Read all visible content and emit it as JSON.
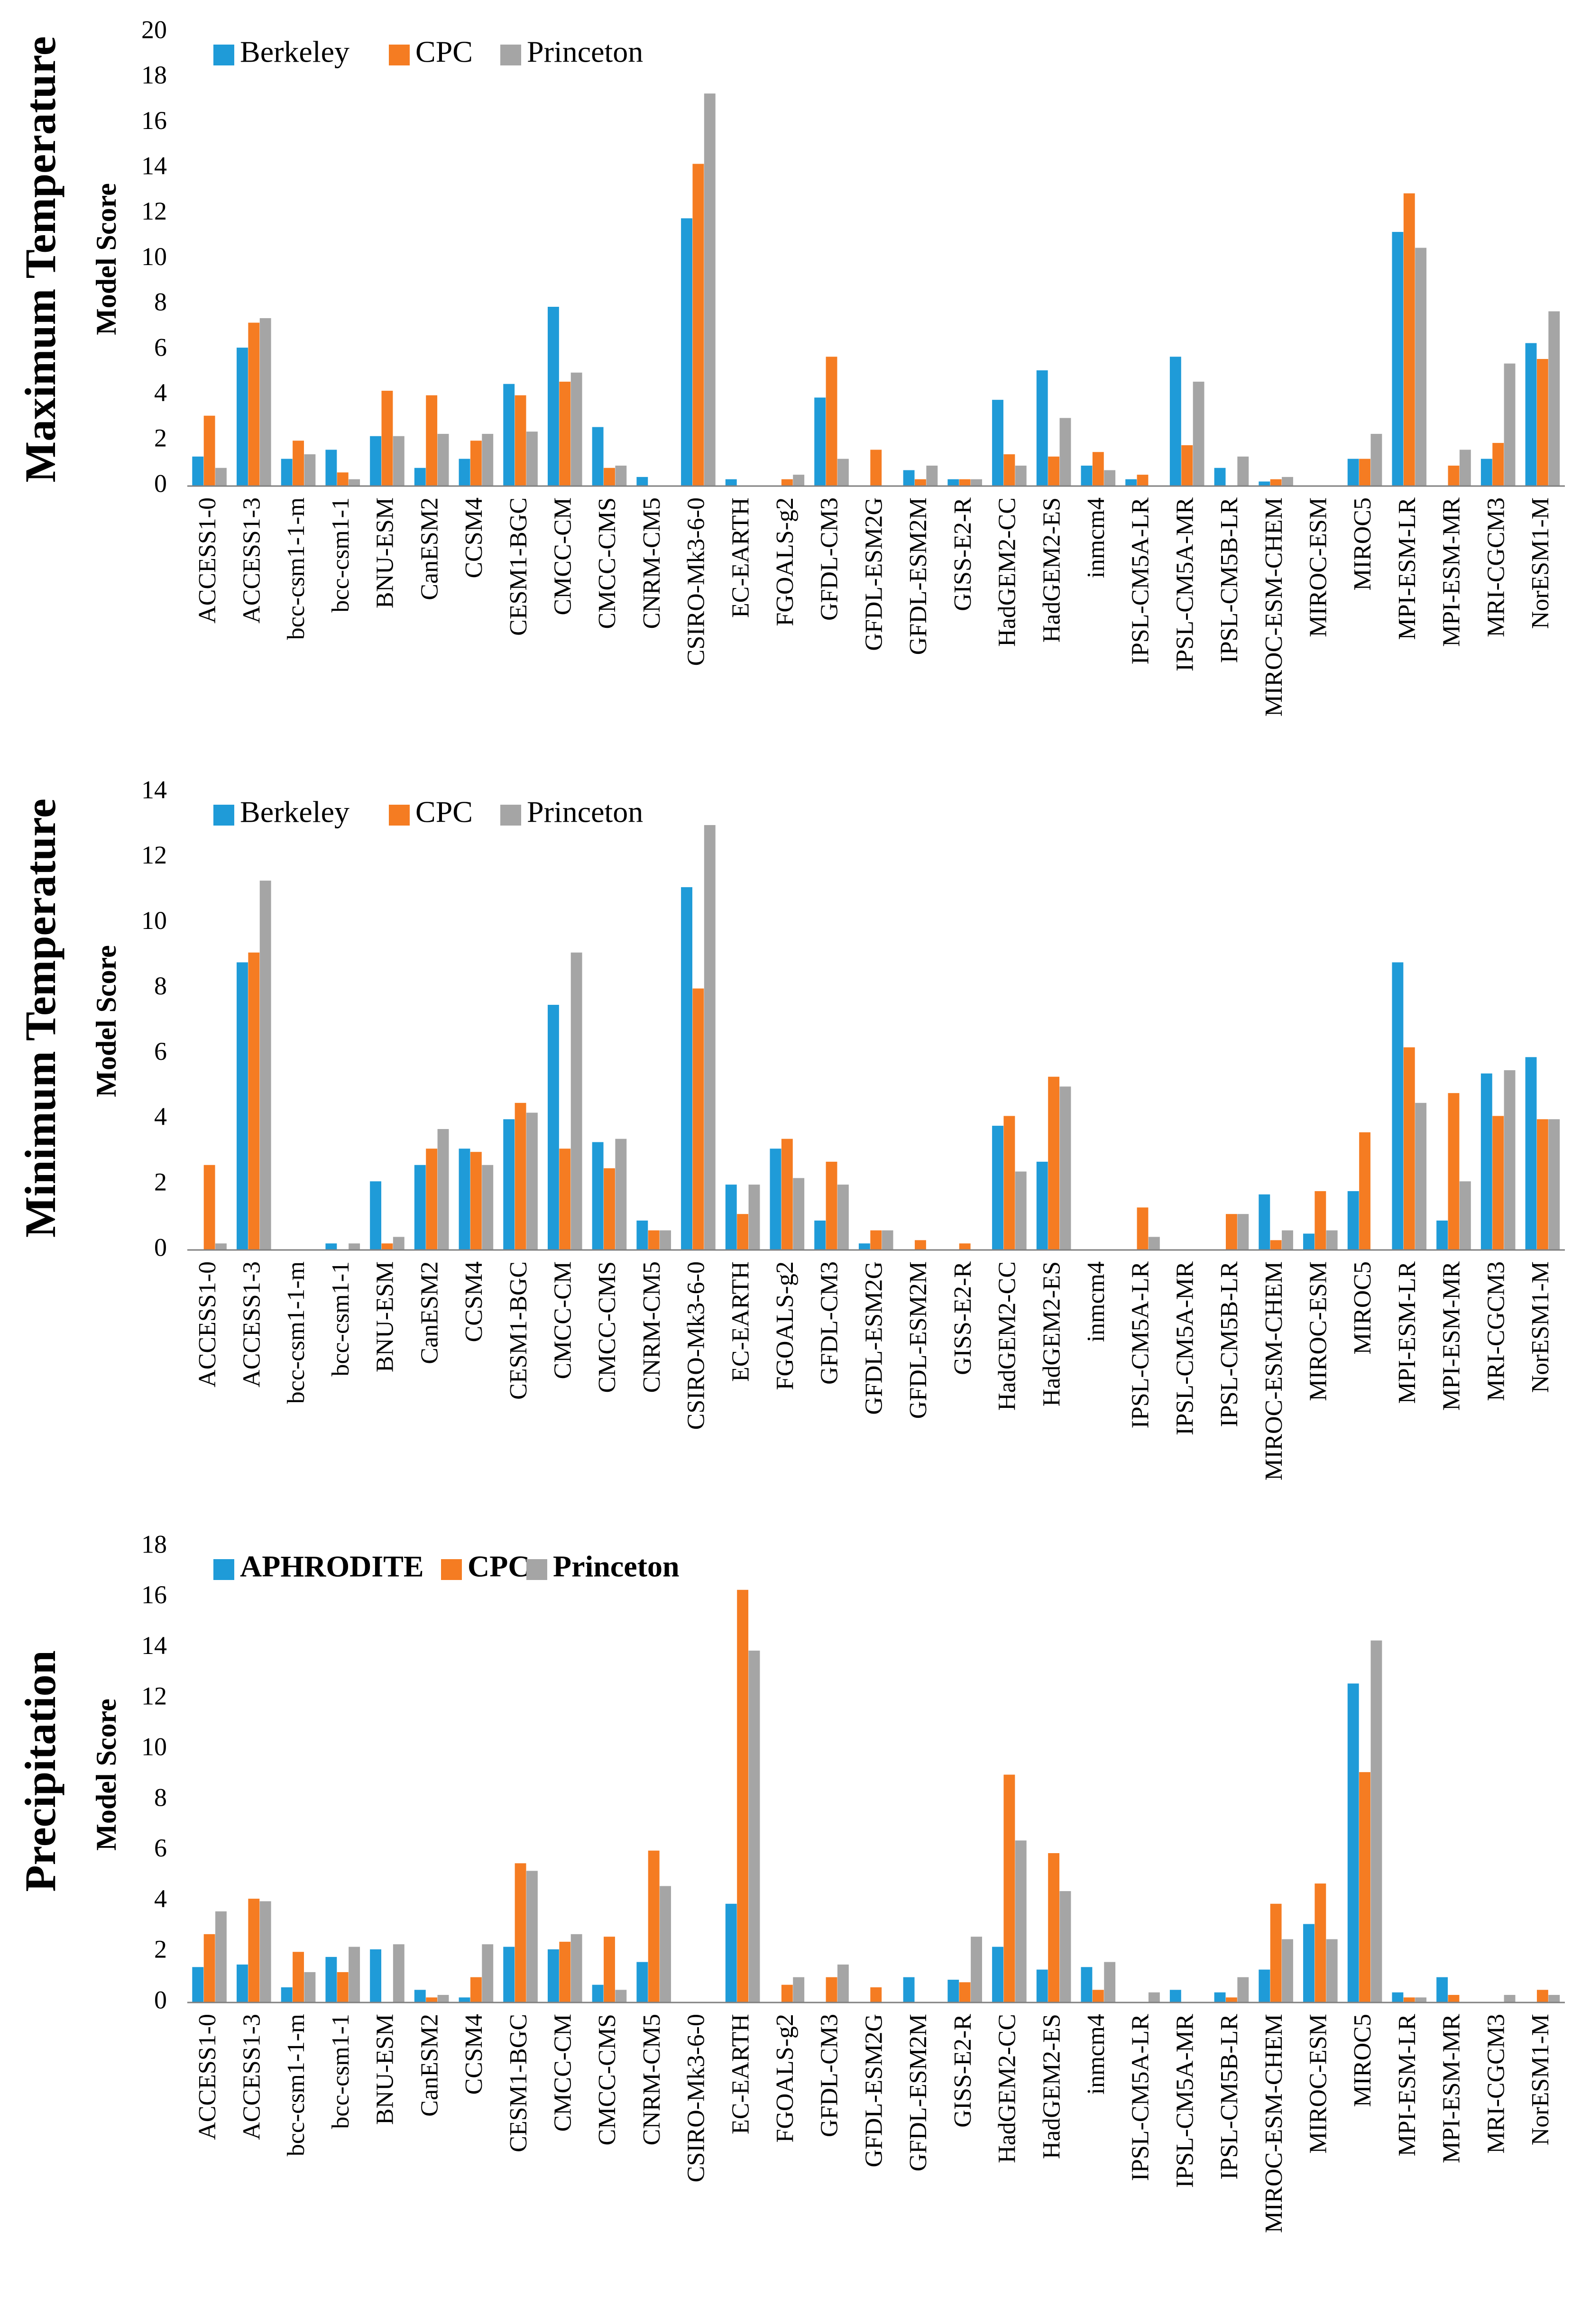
{
  "colors": {
    "series": [
      "#1f9bd8",
      "#f57c22",
      "#a5a5a5"
    ],
    "axis": "#7f7f7f",
    "text": "#000000"
  },
  "chart_data": [
    {
      "type": "bar",
      "panel_label": "Maximum Temperature",
      "ylabel": "Model Score",
      "ylim": [
        0,
        20
      ],
      "ytick_step": 2,
      "legend_bold": false,
      "legend_position": "top-left",
      "categories": [
        "ACCESS1-0",
        "ACCESS1-3",
        "bcc-csm1-1-m",
        "bcc-csm1-1",
        "BNU-ESM",
        "CanESM2",
        "CCSM4",
        "CESM1-BGC",
        "CMCC-CM",
        "CMCC-CMS",
        "CNRM-CM5",
        "CSIRO-Mk3-6-0",
        "EC-EARTH",
        "FGOALS-g2",
        "GFDL-CM3",
        "GFDL-ESM2G",
        "GFDL-ESM2M",
        "GISS-E2-R",
        "HadGEM2-CC",
        "HadGEM2-ES",
        "inmcm4",
        "IPSL-CM5A-LR",
        "IPSL-CM5A-MR",
        "IPSL-CM5B-LR",
        "MIROC-ESM-CHEM",
        "MIROC-ESM",
        "MIROC5",
        "MPI-ESM-LR",
        "MPI-ESM-MR",
        "MRI-CGCM3",
        "NorESM1-M"
      ],
      "series": [
        {
          "name": "Berkeley",
          "values": [
            1.3,
            6.1,
            1.2,
            1.6,
            2.2,
            0.8,
            1.2,
            4.5,
            7.9,
            2.6,
            0.4,
            11.8,
            0.3,
            0.0,
            3.9,
            0.0,
            0.7,
            0.3,
            3.8,
            5.1,
            0.9,
            0.3,
            5.7,
            0.8,
            0.2,
            0.0,
            1.2,
            11.2,
            0.0,
            1.2,
            6.3
          ]
        },
        {
          "name": "CPC",
          "values": [
            3.1,
            7.2,
            2.0,
            0.6,
            4.2,
            4.0,
            2.0,
            4.0,
            4.6,
            0.8,
            0.0,
            14.2,
            0.0,
            0.3,
            5.7,
            1.6,
            0.3,
            0.3,
            1.4,
            1.3,
            1.5,
            0.5,
            1.8,
            0.0,
            0.3,
            0.0,
            1.2,
            12.9,
            0.9,
            1.9,
            5.6
          ]
        },
        {
          "name": "Princeton",
          "values": [
            0.8,
            7.4,
            1.4,
            0.3,
            2.2,
            2.3,
            2.3,
            2.4,
            5.0,
            0.9,
            0.0,
            17.3,
            0.0,
            0.5,
            1.2,
            0.0,
            0.9,
            0.3,
            0.9,
            3.0,
            0.7,
            0.0,
            4.6,
            1.3,
            0.4,
            0.0,
            2.3,
            10.5,
            1.6,
            5.4,
            7.7
          ]
        }
      ]
    },
    {
      "type": "bar",
      "panel_label": "Minimum Temperature",
      "ylabel": "Model Score",
      "ylim": [
        0,
        14
      ],
      "ytick_step": 2,
      "legend_bold": false,
      "legend_position": "top-left",
      "categories": [
        "ACCESS1-0",
        "ACCESS1-3",
        "bcc-csm1-1-m",
        "bcc-csm1-1",
        "BNU-ESM",
        "CanESM2",
        "CCSM4",
        "CESM1-BGC",
        "CMCC-CM",
        "CMCC-CMS",
        "CNRM-CM5",
        "CSIRO-Mk3-6-0",
        "EC-EARTH",
        "FGOALS-g2",
        "GFDL-CM3",
        "GFDL-ESM2G",
        "GFDL-ESM2M",
        "GISS-E2-R",
        "HadGEM2-CC",
        "HadGEM2-ES",
        "inmcm4",
        "IPSL-CM5A-LR",
        "IPSL-CM5A-MR",
        "IPSL-CM5B-LR",
        "MIROC-ESM-CHEM",
        "MIROC-ESM",
        "MIROC5",
        "MPI-ESM-LR",
        "MPI-ESM-MR",
        "MRI-CGCM3",
        "NorESM1-M"
      ],
      "series": [
        {
          "name": "Berkeley",
          "values": [
            0.0,
            8.8,
            0.0,
            0.2,
            2.1,
            2.6,
            3.1,
            4.0,
            7.5,
            3.3,
            0.9,
            11.1,
            2.0,
            3.1,
            0.9,
            0.2,
            0.0,
            0.0,
            3.8,
            2.7,
            0.0,
            0.0,
            0.0,
            0.0,
            1.7,
            0.5,
            1.8,
            8.8,
            0.9,
            5.4,
            5.9
          ]
        },
        {
          "name": "CPC",
          "values": [
            2.6,
            9.1,
            0.0,
            0.0,
            0.2,
            3.1,
            3.0,
            4.5,
            3.1,
            2.5,
            0.6,
            8.0,
            1.1,
            3.4,
            2.7,
            0.6,
            0.3,
            0.2,
            4.1,
            5.3,
            0.0,
            1.3,
            0.0,
            1.1,
            0.3,
            1.8,
            3.6,
            6.2,
            4.8,
            4.1,
            4.0
          ]
        },
        {
          "name": "Princeton",
          "values": [
            0.2,
            11.3,
            0.0,
            0.2,
            0.4,
            3.7,
            2.6,
            4.2,
            9.1,
            3.4,
            0.6,
            13.0,
            2.0,
            2.2,
            2.0,
            0.6,
            0.0,
            0.0,
            2.4,
            5.0,
            0.0,
            0.4,
            0.0,
            1.1,
            0.6,
            0.6,
            0.0,
            4.5,
            2.1,
            5.5,
            4.0
          ]
        }
      ]
    },
    {
      "type": "bar",
      "panel_label": "Precipitation",
      "ylabel": "Model Score",
      "ylim": [
        0,
        18
      ],
      "ytick_step": 2,
      "legend_bold": true,
      "legend_position": "top-left",
      "categories": [
        "ACCESS1-0",
        "ACCESS1-3",
        "bcc-csm1-1-m",
        "bcc-csm1-1",
        "BNU-ESM",
        "CanESM2",
        "CCSM4",
        "CESM1-BGC",
        "CMCC-CM",
        "CMCC-CMS",
        "CNRM-CM5",
        "CSIRO-Mk3-6-0",
        "EC-EARTH",
        "FGOALS-g2",
        "GFDL-CM3",
        "GFDL-ESM2G",
        "GFDL-ESM2M",
        "GISS-E2-R",
        "HadGEM2-CC",
        "HadGEM2-ES",
        "inmcm4",
        "IPSL-CM5A-LR",
        "IPSL-CM5A-MR",
        "IPSL-CM5B-LR",
        "MIROC-ESM-CHEM",
        "MIROC-ESM",
        "MIROC5",
        "MPI-ESM-LR",
        "MPI-ESM-MR",
        "MRI-CGCM3",
        "NorESM1-M"
      ],
      "series": [
        {
          "name": "APHRODITE",
          "values": [
            1.4,
            1.5,
            0.6,
            1.8,
            2.1,
            0.5,
            0.2,
            2.2,
            2.1,
            0.7,
            1.6,
            0.0,
            3.9,
            0.0,
            0.0,
            0.0,
            1.0,
            0.9,
            2.2,
            1.3,
            1.4,
            0.0,
            0.5,
            0.4,
            1.3,
            3.1,
            12.6,
            0.4,
            1.0,
            0.0,
            0.0
          ]
        },
        {
          "name": "CPC",
          "values": [
            2.7,
            4.1,
            2.0,
            1.2,
            0.0,
            0.2,
            1.0,
            5.5,
            2.4,
            2.6,
            6.0,
            0.0,
            16.3,
            0.7,
            1.0,
            0.6,
            0.0,
            0.8,
            9.0,
            5.9,
            0.5,
            0.0,
            0.0,
            0.2,
            3.9,
            4.7,
            9.1,
            0.2,
            0.3,
            0.0,
            0.5
          ]
        },
        {
          "name": "Princeton",
          "values": [
            3.6,
            4.0,
            1.2,
            2.2,
            2.3,
            0.3,
            2.3,
            5.2,
            2.7,
            0.5,
            4.6,
            0.0,
            13.9,
            1.0,
            1.5,
            0.0,
            0.0,
            2.6,
            6.4,
            4.4,
            1.6,
            0.4,
            0.0,
            1.0,
            2.5,
            2.5,
            14.3,
            0.2,
            0.0,
            0.3,
            0.3
          ]
        }
      ]
    }
  ]
}
